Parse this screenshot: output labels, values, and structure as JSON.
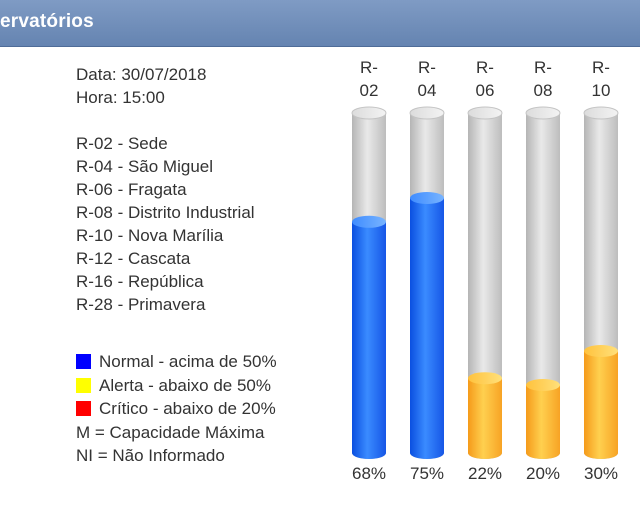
{
  "header": {
    "title": "ervatórios"
  },
  "info": {
    "date": "Data: 30/07/2018",
    "time": "Hora: 15:00"
  },
  "reservoirs": [
    "R-02 - Sede",
    "R-04 - São Miguel",
    "R-06 - Fragata",
    "R-08 - Distrito Industrial",
    "R-10 - Nova Marília",
    "R-12 - Cascata",
    "R-16 - República",
    "R-28 - Primavera"
  ],
  "legend": {
    "items": [
      {
        "label": "Normal - acima de 50%",
        "color": "#0000ff"
      },
      {
        "label": "Alerta - abaixo de 50%",
        "color": "#ffff00"
      },
      {
        "label": "Crítico - abaixo de 20%",
        "color": "#ff0000"
      }
    ],
    "notes": [
      "M = Capacidade Máxima",
      "NI = Não Informado"
    ]
  },
  "chart_data": {
    "type": "bar",
    "categories": [
      [
        "R-",
        "02"
      ],
      [
        "R-",
        "04"
      ],
      [
        "R-",
        "06"
      ],
      [
        "R-",
        "08"
      ],
      [
        "R-",
        "10"
      ]
    ],
    "values": [
      68,
      75,
      22,
      20,
      30
    ],
    "value_labels": [
      "68%",
      "75%",
      "22%",
      "20%",
      "30%"
    ],
    "ylim": [
      0,
      100
    ],
    "colors": {
      "normal": "#1f6bff",
      "alert": "#ffb52e",
      "empty": "#d4d4d4"
    }
  }
}
